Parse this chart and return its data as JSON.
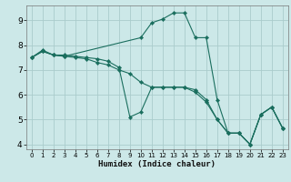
{
  "xlabel": "Humidex (Indice chaleur)",
  "bg_color": "#cce8e8",
  "grid_color": "#aacccc",
  "line_color": "#1a6e5e",
  "xlim": [
    -0.5,
    23.5
  ],
  "ylim": [
    3.8,
    9.6
  ],
  "yticks": [
    4,
    5,
    6,
    7,
    8,
    9
  ],
  "xticks": [
    0,
    1,
    2,
    3,
    4,
    5,
    6,
    7,
    8,
    9,
    10,
    11,
    12,
    13,
    14,
    15,
    16,
    17,
    18,
    19,
    20,
    21,
    22,
    23
  ],
  "series1": [
    [
      0,
      7.5
    ],
    [
      1,
      7.8
    ],
    [
      2,
      7.6
    ],
    [
      3,
      7.6
    ],
    [
      4,
      7.55
    ],
    [
      5,
      7.5
    ],
    [
      6,
      7.45
    ],
    [
      7,
      7.35
    ],
    [
      8,
      7.1
    ],
    [
      9,
      5.1
    ],
    [
      10,
      5.3
    ],
    [
      11,
      6.3
    ],
    [
      12,
      6.3
    ],
    [
      13,
      6.3
    ],
    [
      14,
      6.3
    ],
    [
      15,
      6.2
    ],
    [
      16,
      5.8
    ],
    [
      17,
      5.0
    ],
    [
      18,
      4.45
    ],
    [
      19,
      4.45
    ],
    [
      20,
      4.0
    ],
    [
      21,
      5.2
    ],
    [
      22,
      5.5
    ],
    [
      23,
      4.65
    ]
  ],
  "series2": [
    [
      0,
      7.5
    ],
    [
      1,
      7.75
    ],
    [
      2,
      7.6
    ],
    [
      3,
      7.55
    ],
    [
      4,
      7.5
    ],
    [
      5,
      7.45
    ],
    [
      6,
      7.3
    ],
    [
      7,
      7.2
    ],
    [
      8,
      7.0
    ],
    [
      9,
      6.85
    ],
    [
      10,
      6.5
    ],
    [
      11,
      6.3
    ],
    [
      12,
      6.3
    ],
    [
      13,
      6.3
    ],
    [
      14,
      6.3
    ],
    [
      15,
      6.1
    ],
    [
      16,
      5.7
    ],
    [
      17,
      5.0
    ],
    [
      18,
      4.45
    ],
    [
      19,
      4.45
    ],
    [
      20,
      4.0
    ],
    [
      21,
      5.2
    ],
    [
      22,
      5.5
    ],
    [
      23,
      4.65
    ]
  ],
  "series3": [
    [
      0,
      7.5
    ],
    [
      1,
      7.75
    ],
    [
      2,
      7.6
    ],
    [
      3,
      7.55
    ],
    [
      10,
      8.3
    ],
    [
      11,
      8.9
    ],
    [
      12,
      9.05
    ],
    [
      13,
      9.3
    ],
    [
      14,
      9.3
    ],
    [
      15,
      8.3
    ],
    [
      16,
      8.3
    ],
    [
      17,
      5.8
    ],
    [
      18,
      4.45
    ],
    [
      19,
      4.45
    ],
    [
      20,
      4.0
    ],
    [
      21,
      5.2
    ],
    [
      22,
      5.5
    ],
    [
      23,
      4.65
    ]
  ]
}
